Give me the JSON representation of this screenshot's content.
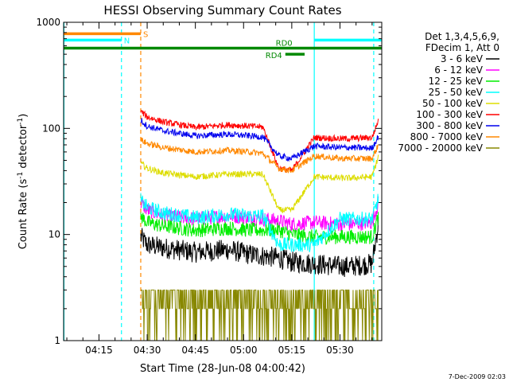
{
  "chart_data": {
    "type": "line",
    "title": "HESSI Observing Summary Count Rates",
    "xlabel": "Start Time (28-Jun-08 04:00:42)",
    "ylabel_main": "Count Rate (s",
    "ylabel_sup1": "-1",
    "ylabel_mid": " detector",
    "ylabel_sup2": "-1",
    "ylabel_end": ")",
    "timestamp": "7-Dec-2009 02:03",
    "y_scale": "log",
    "ylim": [
      1,
      1000
    ],
    "xlim_minutes": [
      4.0,
      103.0
    ],
    "x_ticks": [
      {
        "m": 15,
        "label": "04:15"
      },
      {
        "m": 30,
        "label": "04:30"
      },
      {
        "m": 45,
        "label": "04:45"
      },
      {
        "m": 60,
        "label": "05:00"
      },
      {
        "m": 75,
        "label": "05:15"
      },
      {
        "m": 90,
        "label": "05:30"
      }
    ],
    "y_ticks": [
      {
        "v": 1,
        "label": "1"
      },
      {
        "v": 10,
        "label": "10"
      },
      {
        "v": 100,
        "label": "100"
      },
      {
        "v": 1000,
        "label": "1000"
      }
    ],
    "legend_header": [
      "Det 1,3,4,5,6,9,",
      "FDecim 1, Att 0"
    ],
    "legend_placement": "right",
    "series": [
      {
        "name": "3 - 6 keV",
        "color": "#000000",
        "points": [
          [
            28,
            9.5
          ],
          [
            30,
            8
          ],
          [
            35,
            7.5
          ],
          [
            45,
            6.8
          ],
          [
            55,
            7.2
          ],
          [
            62,
            6.5
          ],
          [
            66,
            6.3
          ],
          [
            71,
            6.0
          ],
          [
            75,
            5.5
          ],
          [
            82,
            5.3
          ],
          [
            90,
            5.0
          ],
          [
            93,
            5.0
          ],
          [
            100,
            5.3
          ],
          [
            102,
            13
          ]
        ]
      },
      {
        "name": "6 - 12 keV",
        "color": "#ff00ff",
        "points": [
          [
            28,
            20
          ],
          [
            30,
            17
          ],
          [
            35,
            15
          ],
          [
            45,
            14
          ],
          [
            55,
            15
          ],
          [
            62,
            14.5
          ],
          [
            66,
            14
          ],
          [
            71,
            13.5
          ],
          [
            75,
            12.5
          ],
          [
            82,
            13
          ],
          [
            90,
            12.5
          ],
          [
            93,
            12.5
          ],
          [
            100,
            13
          ],
          [
            102,
            20
          ]
        ]
      },
      {
        "name": "12 - 25 keV",
        "color": "#00ee00",
        "points": [
          [
            28,
            15
          ],
          [
            30,
            13
          ],
          [
            35,
            12
          ],
          [
            45,
            11
          ],
          [
            55,
            11.5
          ],
          [
            62,
            11
          ],
          [
            66,
            11
          ],
          [
            71,
            11
          ],
          [
            75,
            10
          ],
          [
            82,
            9.5
          ],
          [
            90,
            9.5
          ],
          [
            93,
            9.5
          ],
          [
            100,
            9.5
          ],
          [
            102,
            15
          ]
        ]
      },
      {
        "name": "25 - 50 keV",
        "color": "#00ffff",
        "points": [
          [
            28,
            21
          ],
          [
            30,
            18
          ],
          [
            35,
            16
          ],
          [
            45,
            14.5
          ],
          [
            55,
            15.5
          ],
          [
            62,
            15
          ],
          [
            66,
            15
          ],
          [
            71,
            8
          ],
          [
            75,
            8
          ],
          [
            82,
            8
          ],
          [
            90,
            14
          ],
          [
            93,
            14
          ],
          [
            100,
            14
          ],
          [
            102,
            22
          ]
        ]
      },
      {
        "name": "50 - 100 keV",
        "color": "#dddd00",
        "points": [
          [
            28,
            47
          ],
          [
            30,
            42
          ],
          [
            35,
            38
          ],
          [
            45,
            35
          ],
          [
            55,
            37
          ],
          [
            62,
            37
          ],
          [
            66,
            37
          ],
          [
            71,
            17
          ],
          [
            75,
            17
          ],
          [
            82,
            35
          ],
          [
            90,
            34
          ],
          [
            93,
            34
          ],
          [
            100,
            35
          ],
          [
            102,
            55
          ]
        ]
      },
      {
        "name": "100 - 300 keV",
        "color": "#ff0000",
        "points": [
          [
            28,
            145
          ],
          [
            30,
            128
          ],
          [
            35,
            115
          ],
          [
            45,
            102
          ],
          [
            55,
            108
          ],
          [
            62,
            105
          ],
          [
            66,
            103
          ],
          [
            71,
            42
          ],
          [
            75,
            40
          ],
          [
            82,
            82
          ],
          [
            90,
            80
          ],
          [
            93,
            80
          ],
          [
            100,
            82
          ],
          [
            102,
            120
          ]
        ]
      },
      {
        "name": "300 - 800 keV",
        "color": "#0000ee",
        "points": [
          [
            28,
            120
          ],
          [
            30,
            105
          ],
          [
            35,
            95
          ],
          [
            45,
            85
          ],
          [
            55,
            88
          ],
          [
            62,
            85
          ],
          [
            66,
            83
          ],
          [
            71,
            55
          ],
          [
            75,
            52
          ],
          [
            82,
            68
          ],
          [
            90,
            66
          ],
          [
            93,
            66
          ],
          [
            100,
            65
          ],
          [
            102,
            85
          ]
        ]
      },
      {
        "name": "800 - 7000 keV",
        "color": "#ff8800",
        "points": [
          [
            28,
            78
          ],
          [
            30,
            72
          ],
          [
            35,
            66
          ],
          [
            45,
            60
          ],
          [
            55,
            62
          ],
          [
            62,
            60
          ],
          [
            66,
            58
          ],
          [
            71,
            42
          ],
          [
            75,
            40
          ],
          [
            82,
            55
          ],
          [
            90,
            52
          ],
          [
            93,
            52
          ],
          [
            100,
            52
          ],
          [
            102,
            70
          ]
        ]
      },
      {
        "name": "7000 - 20000 keV",
        "color": "#888800",
        "points": [
          [
            28,
            2.5
          ],
          [
            40,
            2.5
          ],
          [
            55,
            2.5
          ],
          [
            66,
            2.5
          ],
          [
            75,
            2.0
          ],
          [
            82,
            2.0
          ],
          [
            90,
            2.0
          ],
          [
            93,
            2.0
          ],
          [
            100,
            2.0
          ],
          [
            102,
            2.5
          ]
        ]
      }
    ],
    "flag_bars": [
      {
        "label": "S",
        "color": "#ff8800",
        "x0": 4.0,
        "x1": 28.0,
        "y": 780
      },
      {
        "label": "N",
        "color": "#00ffff",
        "x0": 4.0,
        "x1": 22.0,
        "y": 680
      },
      {
        "label": "",
        "color": "#00ffff",
        "x0": 82.0,
        "x1": 103.0,
        "y": 680
      },
      {
        "label": "RD0",
        "color": "#008800",
        "x0": 4.0,
        "x1": 103.0,
        "y": 570
      },
      {
        "label": "RD4",
        "color": "#008800",
        "x0": 73.0,
        "x1": 79.0,
        "y": 500
      }
    ],
    "vlines": [
      {
        "m": 4.1,
        "color": "#00ffff",
        "style": "solid"
      },
      {
        "m": 22.0,
        "color": "#00ffff",
        "style": "dashed"
      },
      {
        "m": 28.0,
        "color": "#ff8800",
        "style": "dashed"
      },
      {
        "m": 82.0,
        "color": "#00ffff",
        "style": "solid"
      },
      {
        "m": 100.5,
        "color": "#00ffff",
        "style": "dashed"
      }
    ]
  }
}
